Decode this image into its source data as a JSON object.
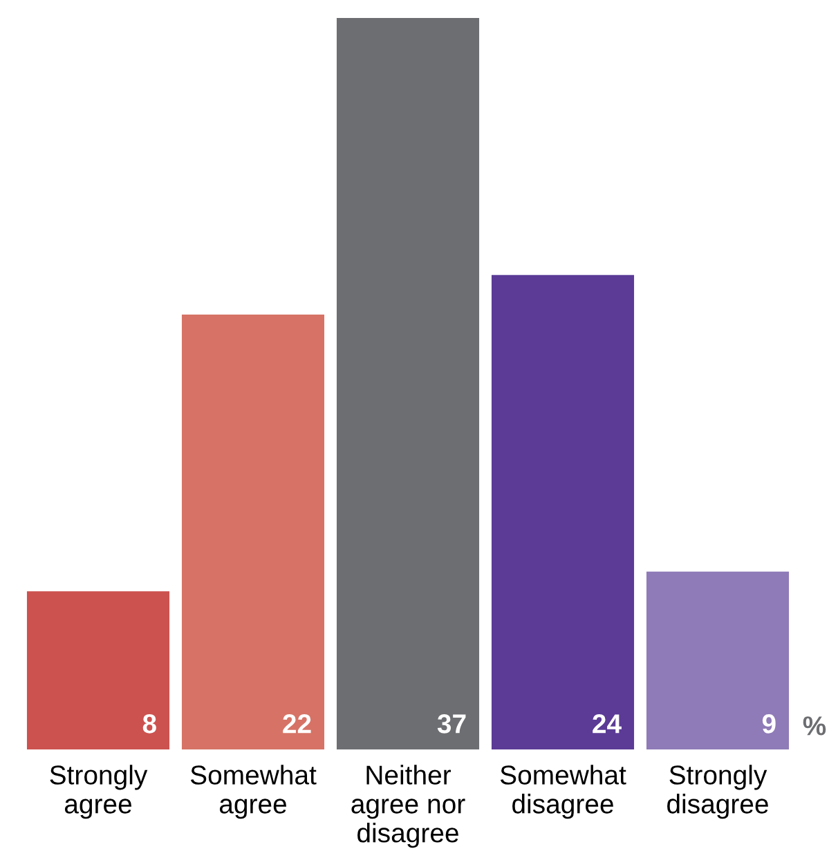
{
  "chart_data": {
    "type": "bar",
    "categories": [
      "Strongly agree",
      "Somewhat agree",
      "Neither agree nor disagree",
      "Somewhat disagree",
      "Strongly disagree"
    ],
    "values": [
      8,
      22,
      37,
      24,
      9
    ],
    "colors": [
      "#cc524f",
      "#d67366",
      "#6d6e71",
      "#5b3b96",
      "#8f7bb7"
    ],
    "data_labels": true,
    "annotations": [
      "%"
    ],
    "grid": false,
    "legend": false
  }
}
